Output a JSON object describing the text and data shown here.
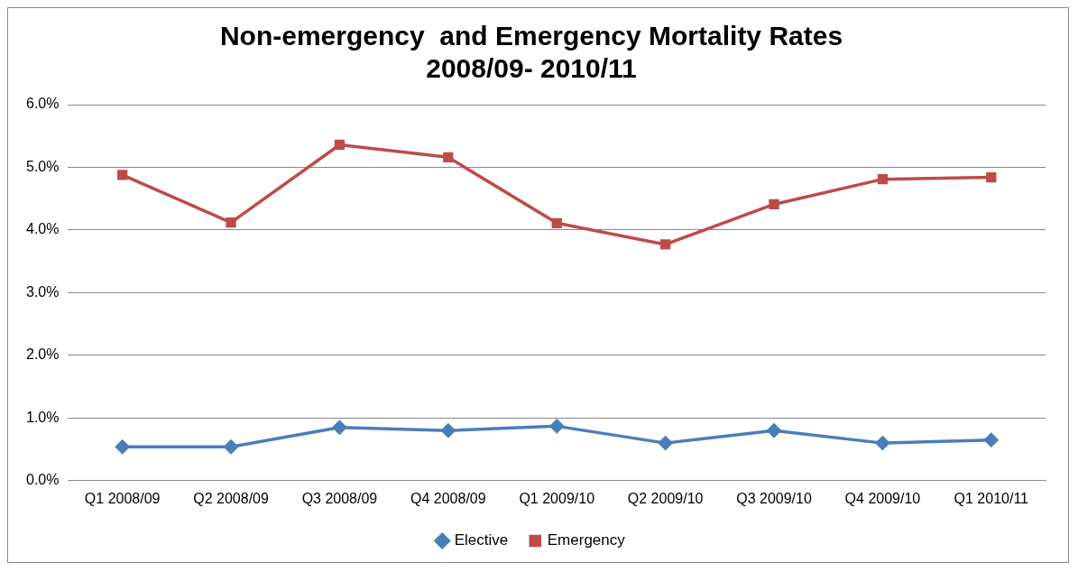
{
  "chart_data": {
    "type": "line",
    "title": "Non-emergency  and Emergency Mortality Rates\n2008/09- 2010/11",
    "categories": [
      "Q1 2008/09",
      "Q2 2008/09",
      "Q3 2008/09",
      "Q4 2008/09",
      "Q1 2009/10",
      "Q2 2009/10",
      "Q3 2009/10",
      "Q4 2009/10",
      "Q1 2010/11"
    ],
    "series": [
      {
        "name": "Elective",
        "color": "#4a7ebb",
        "marker": "diamond",
        "values": [
          0.54,
          0.54,
          0.85,
          0.8,
          0.87,
          0.6,
          0.8,
          0.6,
          0.65
        ]
      },
      {
        "name": "Emergency",
        "color": "#be4b48",
        "marker": "square",
        "values": [
          4.88,
          4.12,
          5.36,
          5.16,
          4.11,
          3.77,
          4.41,
          4.81,
          4.84
        ]
      }
    ],
    "ylim": [
      0,
      6
    ],
    "yticks": [
      {
        "value": 0,
        "label": "0.0%"
      },
      {
        "value": 1,
        "label": "1.0%"
      },
      {
        "value": 2,
        "label": "2.0%"
      },
      {
        "value": 3,
        "label": "3.0%"
      },
      {
        "value": 4,
        "label": "4.0%"
      },
      {
        "value": 5,
        "label": "5.0%"
      },
      {
        "value": 6,
        "label": "6.0%"
      }
    ],
    "grid": "y",
    "legend": "bottom",
    "line_style": "solid"
  }
}
